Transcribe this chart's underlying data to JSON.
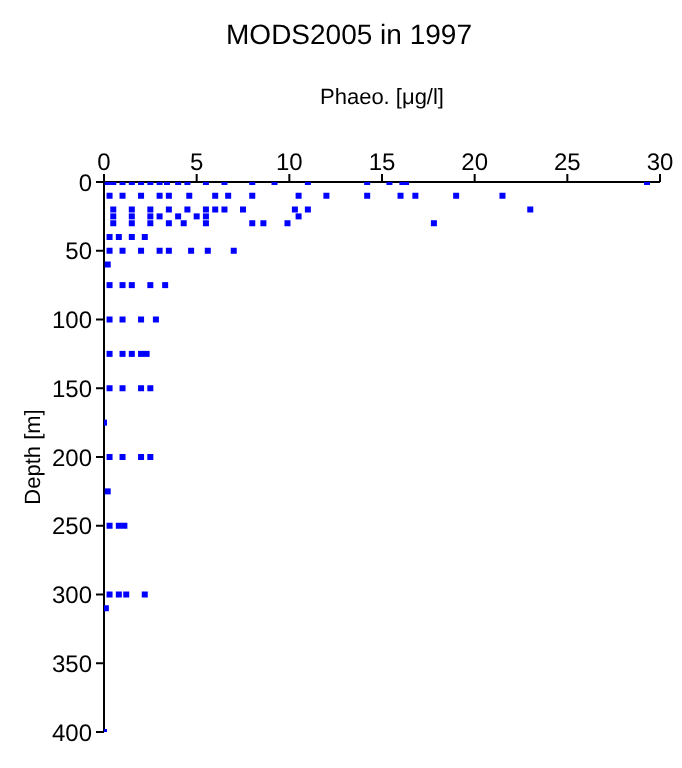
{
  "chart_data": {
    "type": "scatter",
    "title": "MODS2005 in 1997",
    "xlabel": "Phaeo. [μg/l]",
    "ylabel": "Depth [m]",
    "xlim": [
      0,
      30
    ],
    "xticks": [
      0,
      5,
      10,
      15,
      20,
      25,
      30
    ],
    "ylim": [
      400,
      0
    ],
    "yticks": [
      0,
      50,
      100,
      150,
      200,
      250,
      300,
      350,
      400
    ],
    "grid": false,
    "legend": false,
    "marker": "square",
    "series": [
      {
        "color": "#0000ff",
        "x": [
          0.2,
          0.5,
          1,
          1.5,
          2,
          2.5,
          3,
          3.4,
          4,
          4.5,
          5.5,
          6.5,
          8,
          9.2,
          11,
          14.2,
          15.4,
          16.1,
          16.3,
          29.3,
          0.3,
          1,
          2,
          3,
          3.5,
          4.6,
          6,
          6.7,
          8,
          10.5,
          12,
          14.2,
          16,
          16.8,
          19,
          21.5,
          0.5,
          1.5,
          2.5,
          3.5,
          4.5,
          5.5,
          6,
          6.5,
          7.5,
          10.3,
          11,
          23,
          0.5,
          1.5,
          2.5,
          3,
          4,
          5,
          5.5,
          10.5,
          0.5,
          1.5,
          2.5,
          3.5,
          4.3,
          5.5,
          8,
          8.6,
          9.9,
          17.8,
          0.3,
          0.8,
          1.5,
          2.2,
          0.3,
          1,
          2,
          3,
          3.5,
          4.7,
          5.6,
          7,
          0.2,
          0.3,
          1,
          1.5,
          2.5,
          3.3,
          0.3,
          1,
          2,
          2.8,
          0.3,
          1,
          1.5,
          2,
          2.3,
          0.3,
          1,
          2,
          2.5,
          0,
          0.3,
          1,
          2,
          2.5,
          0.2,
          0.3,
          0.8,
          1.1,
          0.3,
          0.8,
          1.2,
          2.2,
          0.1,
          0
        ],
        "values": [
          0,
          0,
          0,
          0,
          0,
          0,
          0,
          0,
          0,
          0,
          0,
          0,
          0,
          0,
          0,
          0,
          0,
          0,
          0,
          0,
          10,
          10,
          10,
          10,
          10,
          10,
          10,
          10,
          10,
          10,
          10,
          10,
          10,
          10,
          10,
          10,
          20,
          20,
          20,
          20,
          20,
          20,
          20,
          20,
          20,
          20,
          20,
          20,
          25,
          25,
          25,
          25,
          25,
          25,
          25,
          25,
          30,
          30,
          30,
          30,
          30,
          30,
          30,
          30,
          30,
          30,
          40,
          40,
          40,
          40,
          50,
          50,
          50,
          50,
          50,
          50,
          50,
          50,
          60,
          75,
          75,
          75,
          75,
          75,
          100,
          100,
          100,
          100,
          125,
          125,
          125,
          125,
          125,
          150,
          150,
          150,
          150,
          175,
          200,
          200,
          200,
          200,
          225,
          250,
          250,
          250,
          300,
          300,
          300,
          300,
          310,
          400
        ]
      }
    ]
  }
}
